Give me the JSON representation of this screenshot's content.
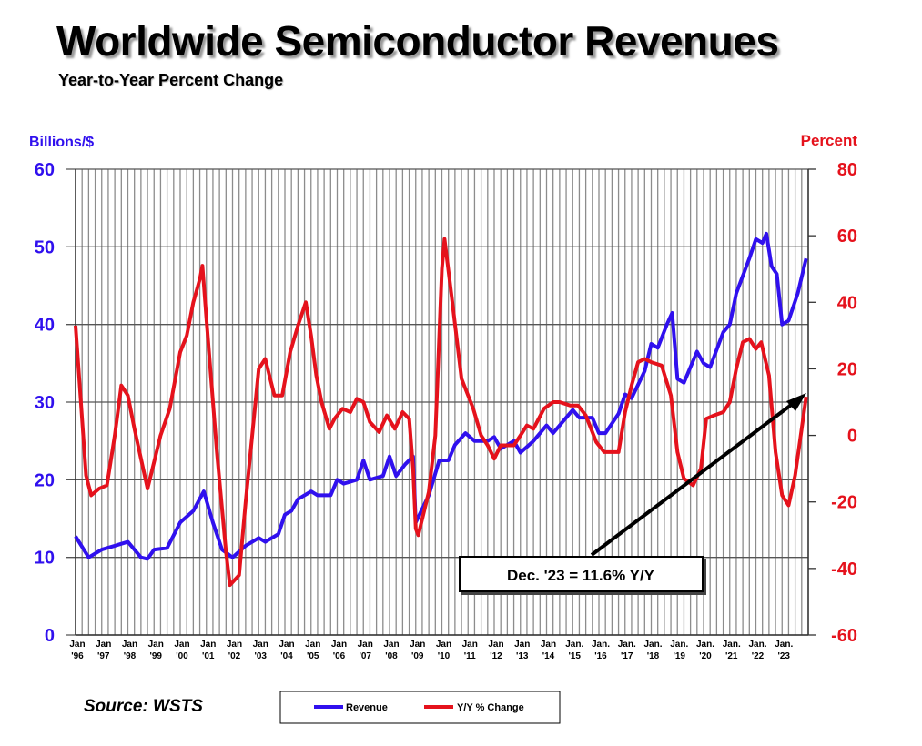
{
  "title": "Worldwide Semiconductor Revenues",
  "subtitle": "Year-to-Year Percent Change",
  "source": "Source: WSTS",
  "colors": {
    "revenue": "#3010ee",
    "yoy": "#e5121c",
    "grid": "#8c8c8c"
  },
  "chart_data": {
    "type": "line",
    "title": "Worldwide Semiconductor Revenues",
    "ylabel_left": "Billions/$",
    "ylabel_right": "Percent",
    "ylim_left": [
      0,
      60
    ],
    "ylim_right": [
      -60,
      80
    ],
    "yticks_left": [
      "0",
      "10",
      "20",
      "30",
      "40",
      "50",
      "60"
    ],
    "yticks_right": [
      "-60",
      "-40",
      "-20",
      "0",
      "20",
      "40",
      "60",
      "80"
    ],
    "xlim": [
      1996,
      2024
    ],
    "xticks": [
      [
        "Jan",
        "'96"
      ],
      [
        "Jan",
        "'97"
      ],
      [
        "Jan",
        "'98"
      ],
      [
        "Jan",
        "'99"
      ],
      [
        "Jan",
        "'00"
      ],
      [
        "Jan",
        "'01"
      ],
      [
        "Jan",
        "'02"
      ],
      [
        "Jan",
        "'03"
      ],
      [
        "Jan",
        "'04"
      ],
      [
        "Jan",
        "'05"
      ],
      [
        "Jan",
        "'06"
      ],
      [
        "Jan",
        "'07"
      ],
      [
        "Jan",
        "'08"
      ],
      [
        "Jan",
        "'09"
      ],
      [
        "Jan",
        "'10"
      ],
      [
        "Jan",
        "'11"
      ],
      [
        "Jan",
        "'12"
      ],
      [
        "Jan",
        "'13"
      ],
      [
        "Jan",
        "'14"
      ],
      [
        "Jan.",
        "'15"
      ],
      [
        "Jan.",
        "'16"
      ],
      [
        "Jan.",
        "'17"
      ],
      [
        "Jan.",
        "'18"
      ],
      [
        "Jan.",
        "'19"
      ],
      [
        "Jan.",
        "'20"
      ],
      [
        "Jan.",
        "'21"
      ],
      [
        "Jan.",
        "'22"
      ],
      [
        "Jan.",
        "'23"
      ]
    ],
    "grid": true,
    "legend_position": "bottom-center",
    "annotation": "Dec. '23 = 11.6% Y/Y",
    "series": [
      {
        "name": "Revenue",
        "axis": "left",
        "points": [
          [
            1996.0,
            12.7
          ],
          [
            1996.5,
            10.0
          ],
          [
            1997.0,
            11
          ],
          [
            1997.5,
            11.5
          ],
          [
            1998.0,
            12
          ],
          [
            1998.5,
            10
          ],
          [
            1998.75,
            9.8
          ],
          [
            1999.0,
            11
          ],
          [
            1999.5,
            11.2
          ],
          [
            2000.0,
            14.5
          ],
          [
            2000.5,
            16
          ],
          [
            2000.9,
            18.5
          ],
          [
            2001.25,
            14.5
          ],
          [
            2001.6,
            11
          ],
          [
            2002.0,
            10
          ],
          [
            2002.5,
            11.5
          ],
          [
            2003.0,
            12.5
          ],
          [
            2003.25,
            12
          ],
          [
            2003.75,
            13
          ],
          [
            2004.0,
            15.5
          ],
          [
            2004.25,
            16
          ],
          [
            2004.5,
            17.5
          ],
          [
            2005.0,
            18.5
          ],
          [
            2005.25,
            18
          ],
          [
            2005.75,
            18
          ],
          [
            2006.0,
            20
          ],
          [
            2006.25,
            19.5
          ],
          [
            2006.75,
            20
          ],
          [
            2007.0,
            22.5
          ],
          [
            2007.25,
            20
          ],
          [
            2007.75,
            20.5
          ],
          [
            2008.0,
            23
          ],
          [
            2008.25,
            20.5
          ],
          [
            2008.6,
            22
          ],
          [
            2008.9,
            23
          ],
          [
            2009.0,
            14.5
          ],
          [
            2009.5,
            18
          ],
          [
            2009.9,
            22.5
          ],
          [
            2010.25,
            22.5
          ],
          [
            2010.5,
            24.5
          ],
          [
            2010.9,
            26
          ],
          [
            2011.25,
            25
          ],
          [
            2011.75,
            25
          ],
          [
            2012.0,
            25.5
          ],
          [
            2012.25,
            24
          ],
          [
            2012.75,
            25
          ],
          [
            2013.0,
            23.5
          ],
          [
            2013.5,
            25
          ],
          [
            2014.0,
            27
          ],
          [
            2014.25,
            26
          ],
          [
            2014.75,
            28
          ],
          [
            2015.0,
            29
          ],
          [
            2015.25,
            28
          ],
          [
            2015.75,
            28
          ],
          [
            2016.0,
            26
          ],
          [
            2016.25,
            26
          ],
          [
            2016.75,
            28.5
          ],
          [
            2017.0,
            31
          ],
          [
            2017.25,
            30.5
          ],
          [
            2017.75,
            34
          ],
          [
            2018.0,
            37.5
          ],
          [
            2018.25,
            37
          ],
          [
            2018.6,
            40
          ],
          [
            2018.8,
            41.5
          ],
          [
            2019.0,
            33
          ],
          [
            2019.25,
            32.5
          ],
          [
            2019.75,
            36.5
          ],
          [
            2020.0,
            35
          ],
          [
            2020.25,
            34.5
          ],
          [
            2020.75,
            39
          ],
          [
            2021.0,
            40
          ],
          [
            2021.25,
            44
          ],
          [
            2021.75,
            48.5
          ],
          [
            2022.0,
            51
          ],
          [
            2022.25,
            50.5
          ],
          [
            2022.4,
            51.7
          ],
          [
            2022.6,
            47.5
          ],
          [
            2022.8,
            46.5
          ],
          [
            2023.0,
            40
          ],
          [
            2023.25,
            40.5
          ],
          [
            2023.6,
            44
          ],
          [
            2023.92,
            48.5
          ]
        ]
      },
      {
        "name": "Y/Y % Change",
        "axis": "right",
        "points": [
          [
            1996.0,
            33
          ],
          [
            1996.4,
            -12
          ],
          [
            1996.6,
            -18
          ],
          [
            1996.9,
            -16
          ],
          [
            1997.2,
            -15
          ],
          [
            1997.5,
            0
          ],
          [
            1997.75,
            15
          ],
          [
            1998.0,
            12
          ],
          [
            1998.25,
            2
          ],
          [
            1998.5,
            -7
          ],
          [
            1998.75,
            -16
          ],
          [
            1999.0,
            -8
          ],
          [
            1999.25,
            0
          ],
          [
            1999.6,
            8
          ],
          [
            2000.0,
            25
          ],
          [
            2000.25,
            30
          ],
          [
            2000.5,
            40
          ],
          [
            2000.75,
            47
          ],
          [
            2000.85,
            51
          ],
          [
            2001.0,
            35
          ],
          [
            2001.4,
            -5
          ],
          [
            2001.75,
            -35
          ],
          [
            2001.9,
            -45
          ],
          [
            2002.25,
            -42
          ],
          [
            2002.5,
            -20
          ],
          [
            2002.75,
            0
          ],
          [
            2003.0,
            20
          ],
          [
            2003.25,
            23
          ],
          [
            2003.6,
            12
          ],
          [
            2003.9,
            12
          ],
          [
            2004.2,
            25
          ],
          [
            2004.5,
            33
          ],
          [
            2004.8,
            40
          ],
          [
            2005.0,
            30
          ],
          [
            2005.2,
            18
          ],
          [
            2005.4,
            10
          ],
          [
            2005.7,
            2
          ],
          [
            2005.9,
            5
          ],
          [
            2006.2,
            8
          ],
          [
            2006.5,
            7
          ],
          [
            2006.75,
            11
          ],
          [
            2007.0,
            10
          ],
          [
            2007.25,
            4
          ],
          [
            2007.6,
            1
          ],
          [
            2007.9,
            6
          ],
          [
            2008.2,
            2
          ],
          [
            2008.5,
            7
          ],
          [
            2008.75,
            5
          ],
          [
            2008.9,
            -10
          ],
          [
            2009.0,
            -28
          ],
          [
            2009.1,
            -30
          ],
          [
            2009.5,
            -17
          ],
          [
            2009.75,
            0
          ],
          [
            2010.0,
            50
          ],
          [
            2010.1,
            59
          ],
          [
            2010.4,
            40
          ],
          [
            2010.75,
            17
          ],
          [
            2011.0,
            12
          ],
          [
            2011.2,
            8
          ],
          [
            2011.5,
            0
          ],
          [
            2011.75,
            -3
          ],
          [
            2012.0,
            -7
          ],
          [
            2012.25,
            -3
          ],
          [
            2012.75,
            -3
          ],
          [
            2013.0,
            0
          ],
          [
            2013.25,
            3
          ],
          [
            2013.5,
            2
          ],
          [
            2013.9,
            8
          ],
          [
            2014.25,
            10
          ],
          [
            2014.5,
            10
          ],
          [
            2014.9,
            9
          ],
          [
            2015.2,
            9
          ],
          [
            2015.5,
            6
          ],
          [
            2015.9,
            -2
          ],
          [
            2016.2,
            -5
          ],
          [
            2016.5,
            -5
          ],
          [
            2016.75,
            -5
          ],
          [
            2017.0,
            7
          ],
          [
            2017.25,
            15
          ],
          [
            2017.5,
            22
          ],
          [
            2017.75,
            23
          ],
          [
            2018.0,
            22
          ],
          [
            2018.4,
            21
          ],
          [
            2018.75,
            12
          ],
          [
            2019.0,
            -5
          ],
          [
            2019.25,
            -13
          ],
          [
            2019.6,
            -15
          ],
          [
            2019.9,
            -10
          ],
          [
            2020.1,
            5
          ],
          [
            2020.4,
            6
          ],
          [
            2020.75,
            7
          ],
          [
            2021.0,
            10
          ],
          [
            2021.25,
            20
          ],
          [
            2021.5,
            28
          ],
          [
            2021.75,
            29
          ],
          [
            2022.0,
            26
          ],
          [
            2022.2,
            28
          ],
          [
            2022.5,
            18
          ],
          [
            2022.75,
            -5
          ],
          [
            2023.0,
            -18
          ],
          [
            2023.25,
            -21
          ],
          [
            2023.5,
            -12
          ],
          [
            2023.75,
            2
          ],
          [
            2023.92,
            11.6
          ]
        ]
      }
    ]
  }
}
